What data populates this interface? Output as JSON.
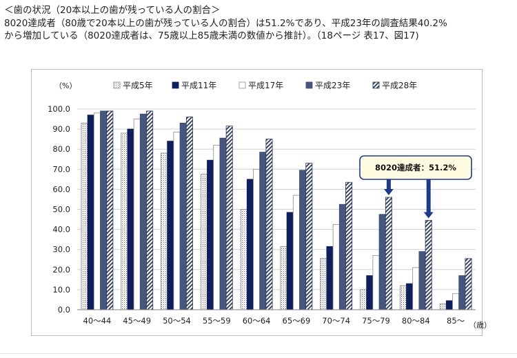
{
  "heading": "＜歯の状況（20本以上の歯が残っている人の割合＞",
  "description": [
    "8020達成者（80歳で20本以上の歯が残っている人の割合）は51.2%であり、平成23年の調査結果40.2%",
    "から増加している（8020達成者は、75歳以上85歳未満の数値から推計）。（18ページ 表17、図17)"
  ],
  "chart_data": {
    "type": "bar",
    "y_unit_label": "（%）",
    "x_unit_label": "（歳）",
    "ylim": [
      0,
      100
    ],
    "y_ticks": [
      "0.0",
      "10.0",
      "20.0",
      "30.0",
      "40.0",
      "50.0",
      "60.0",
      "70.0",
      "80.0",
      "90.0",
      "100.0"
    ],
    "categories": [
      "40〜44",
      "45〜49",
      "50〜54",
      "55〜59",
      "60〜64",
      "65〜69",
      "70〜74",
      "75〜79",
      "80〜84",
      "85〜"
    ],
    "series": [
      {
        "name": "平成5年",
        "style": "dotted",
        "values": [
          93,
          88,
          78,
          67.5,
          50,
          31.5,
          25.5,
          10,
          12,
          3
        ]
      },
      {
        "name": "平成11年",
        "style": "navy",
        "values": [
          97,
          90,
          84,
          74.5,
          65,
          48.5,
          31.5,
          17,
          13,
          4.5
        ]
      },
      {
        "name": "平成17年",
        "style": "white",
        "values": [
          98,
          95,
          88.5,
          82,
          70,
          57,
          42.5,
          27,
          21,
          8
        ]
      },
      {
        "name": "平成23年",
        "style": "slate",
        "values": [
          99,
          97.5,
          93,
          85.5,
          78.5,
          69.5,
          52.5,
          47.5,
          29,
          17
        ]
      },
      {
        "name": "平成28年",
        "style": "striped",
        "values": [
          99,
          99,
          96,
          91.5,
          85,
          73,
          63.5,
          56,
          44.5,
          25.5
        ]
      }
    ],
    "callout": {
      "text": "8020達成者：51.2%",
      "arrow_category_indices": [
        7,
        8
      ],
      "arrow_series_index": 4
    },
    "grid": true,
    "legend_position": "top"
  }
}
